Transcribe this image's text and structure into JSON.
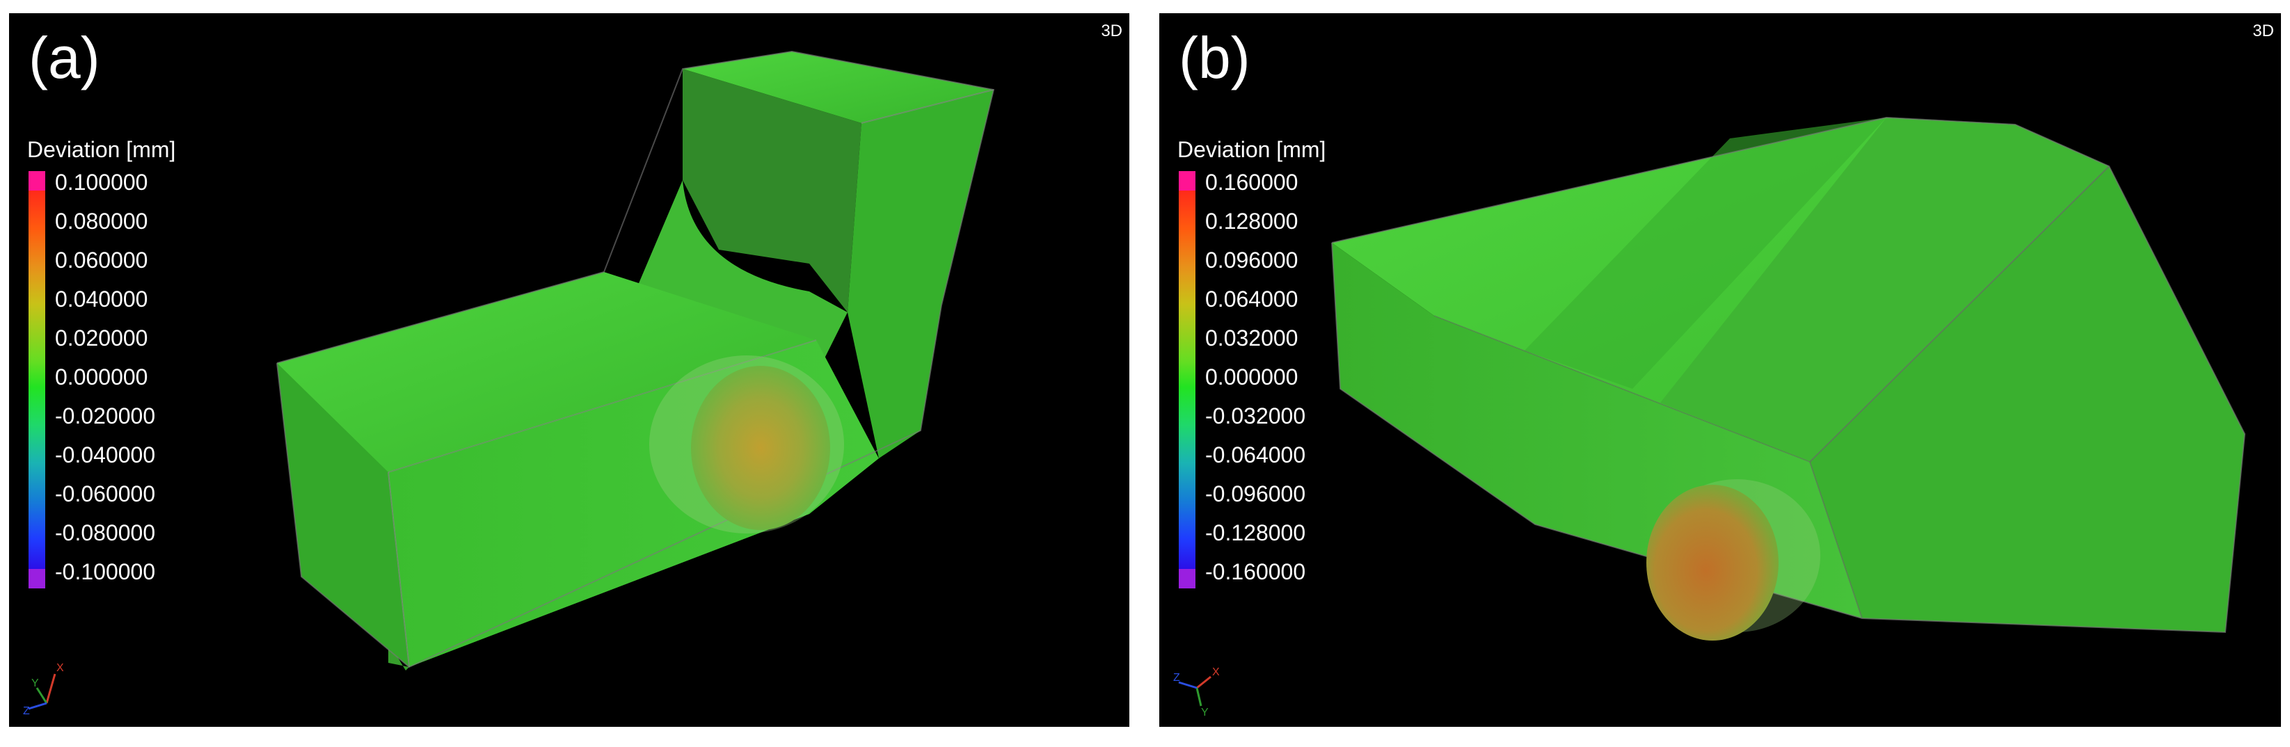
{
  "panels": [
    {
      "letter": "(a)",
      "view_tag": "3D",
      "legend": {
        "title": "Deviation [mm]",
        "labels": [
          "0.100000",
          "0.080000",
          "0.060000",
          "0.040000",
          "0.020000",
          "0.000000",
          "-0.020000",
          "-0.040000",
          "-0.060000",
          "-0.080000",
          "-0.100000"
        ]
      },
      "axes": {
        "x": "X",
        "y": "Y",
        "z": "Z"
      }
    },
    {
      "letter": "(b)",
      "view_tag": "3D",
      "legend": {
        "title": "Deviation [mm]",
        "labels": [
          "0.160000",
          "0.128000",
          "0.096000",
          "0.064000",
          "0.032000",
          "0.000000",
          "-0.032000",
          "-0.064000",
          "-0.096000",
          "-0.128000",
          "-0.160000"
        ]
      },
      "axes": {
        "x": "X",
        "y": "Y",
        "z": "Z"
      }
    }
  ],
  "colors": {
    "background": "#000000",
    "surface_green": "#3cc832",
    "legend_over": "#ff1493",
    "legend_under": "#9a1fe0",
    "defect": "#c8782a"
  }
}
